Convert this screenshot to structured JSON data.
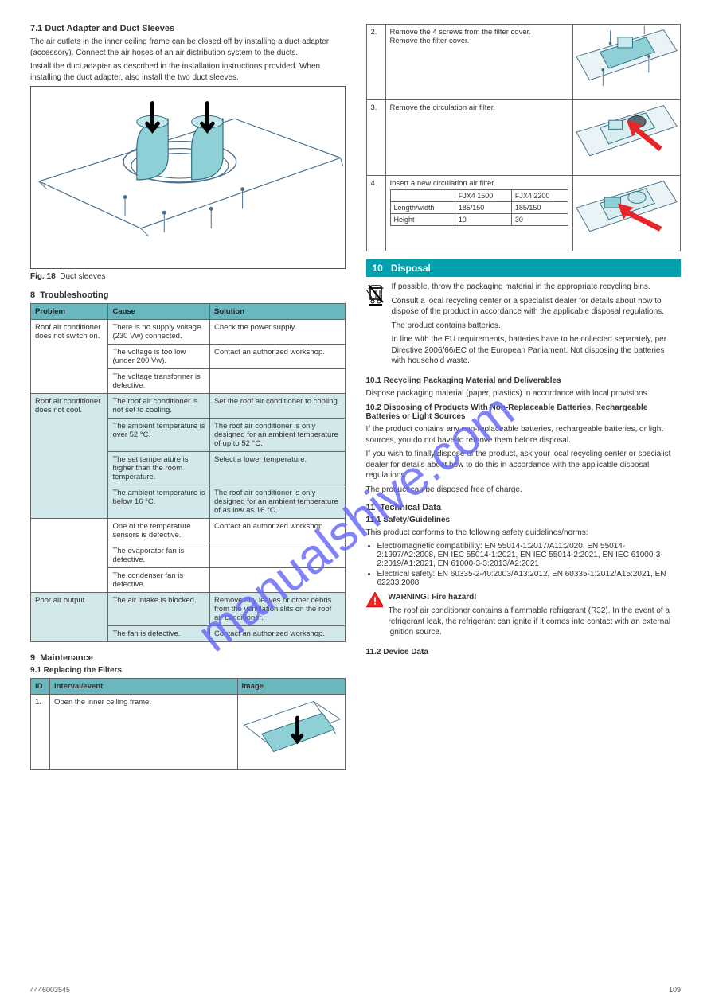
{
  "page_number": "109",
  "footer_ref": "4446003545",
  "watermark": "manualshive.com",
  "left": {
    "sec1_title": "7.1 Duct Adapter and Duct Sleeves",
    "sec1_p1": "The air outlets in the inner ceiling frame can be closed off by installing a duct adapter (accessory). Connect the air hoses of an air distribution system to the ducts.",
    "sec1_p2": "Install the duct adapter as described in the installation instructions provided. When installing the duct adapter, also install the two duct sleeves.",
    "fig_label_18": "Fig. 18",
    "fig18_caption": "Duct sleeves",
    "sec2_num": "8",
    "sec2_title": "Troubleshooting",
    "trouble_headers": [
      "Problem",
      "Cause",
      "Solution"
    ],
    "trouble_rows": [
      {
        "shade": false,
        "problem": "Roof air conditioner does not switch on.",
        "items": [
          {
            "cause": "There is no supply voltage (230 Vw) connected.",
            "sol": "Check the power supply."
          },
          {
            "cause": "The voltage is too low (under 200 Vw).",
            "sol": "Contact an authorized workshop."
          },
          {
            "cause": "The voltage transformer is defective.",
            "sol": ""
          }
        ]
      },
      {
        "shade": true,
        "problem": "Roof air conditioner does not cool.",
        "items": [
          {
            "cause": "The roof air conditioner is not set to cooling.",
            "sol": "Set the roof air conditioner to cooling."
          },
          {
            "cause": "The ambient temperature is over 52 °C.",
            "sol": "The roof air conditioner is only designed for an ambient temperature of up to 52 °C."
          },
          {
            "cause": "The set temperature is higher than the room temperature.",
            "sol": "Select a lower temperature."
          },
          {
            "cause": "The ambient temperature is below 16 °C.",
            "sol": "The roof air conditioner is only designed for an ambient temperature of as low as 16 °C."
          }
        ]
      },
      {
        "shade": false,
        "problem": "",
        "items": [
          {
            "cause": "One of the temperature sensors is defective.",
            "sol": "Contact an authorized workshop."
          },
          {
            "cause": "The evaporator fan is defective.",
            "sol": ""
          },
          {
            "cause": "The condenser fan is defective.",
            "sol": ""
          }
        ]
      },
      {
        "shade": true,
        "problem": "Poor air output",
        "items": [
          {
            "cause": "The air intake is blocked.",
            "sol": "Remove any leaves or other debris from the ventilation slits on the roof air conditioner."
          },
          {
            "cause": "The fan is defective.",
            "sol": "Contact an authorized workshop."
          }
        ]
      }
    ],
    "sec3_num": "9",
    "sec3_title": "Maintenance",
    "sec3_sub": "9.1 Replacing the Filters",
    "filter_headers": [
      "ID",
      "Interval/event",
      "Image"
    ],
    "filter_row1_id": "1.",
    "filter_row1_txt": "Open the inner ceiling frame."
  },
  "right": {
    "filter_row2_id": "2.",
    "filter_row2_txt_a": "Remove the 4 screws from the filter cover.",
    "filter_row2_txt_b": "Remove the filter cover.",
    "filter_row3_id": "3.",
    "filter_row3_txt": "Remove the circulation air filter.",
    "filter_row4_id": "4.",
    "filter_row4_txt": "Insert a new circulation air filter.",
    "dims_headers": [
      "",
      "FJX4 1500",
      "FJX4 2200"
    ],
    "dims_rows": [
      [
        "Length/width",
        "185/150",
        "185/150"
      ],
      [
        "Height",
        "10",
        "30"
      ]
    ],
    "bar_num": "10",
    "bar_title": "Disposal",
    "weee_p1": "If possible, throw the packaging material in the appropriate recycling bins.",
    "weee_p2": "Consult a local recycling center or a specialist dealer for details about how to dispose of the product in accordance with the applicable disposal regulations.",
    "weee_p3": "The product contains batteries.",
    "weee_p4": "In line with the EU requirements, batteries have to be collected separately, per Directive 2006/66/EC of the European Parliament. Not disposing the batteries with household waste.",
    "disposal_sub": "10.1 Recycling Packaging Material and Deliverables",
    "disposal_p1": "Dispose packaging material (paper, plastics) in accordance with local provisions.",
    "battery_sub": "10.2 Disposing of Products With Non-Replaceable Batteries, Rechargeable Batteries or Light Sources",
    "battery_p1": "If the product contains any non-replaceable batteries, rechargeable batteries, or light sources, you do not have to remove them before disposal.",
    "battery_p2": "If you wish to finally dispose of the product, ask your local recycling center or specialist dealer for details about how to do this in accordance with the applicable disposal regulations.",
    "battery_p3": "The product can be disposed free of charge.",
    "sec11_num": "11",
    "sec11_title": "Technical Data",
    "safety_sub": "11.1 Safety/Guidelines",
    "safety_p": "This product conforms to the following safety guidelines/norms:",
    "safety_items": [
      "Electromagnetic compatibility: EN 55014-1:2017/A11:2020, EN 55014-2:1997/A2:2008, EN IEC 55014-1:2021, EN IEC 55014-2:2021, EN IEC 61000-3-2:2019/A1:2021, EN 61000-3-3:2013/A2:2021",
      "Electrical safety: EN 60335-2-40:2003/A13:2012, EN 60335-1:2012/A15:2021, EN 62233:2008"
    ],
    "warn_title": "WARNING! Fire hazard!",
    "warn_txt": "The roof air conditioner contains a flammable refrigerant (R32). In the event of a refrigerant leak, the refrigerant can ignite if it comes into contact with an external ignition source.",
    "data_sub": "11.2 Device Data"
  },
  "colors": {
    "teal_bar": "#00a3ad",
    "header_bg": "#69b8bf",
    "shade_bg": "#d2e8ea",
    "accent_cyan": "#8fd0d7",
    "red_arrow": "#e8262a",
    "watermark": "#6d6df7"
  }
}
